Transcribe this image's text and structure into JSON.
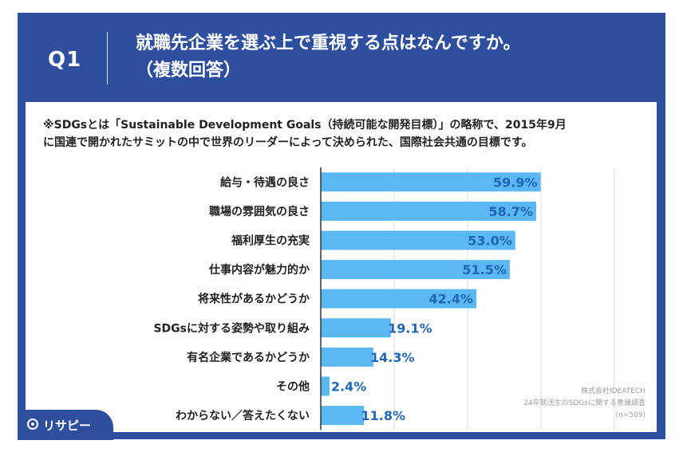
{
  "header": {
    "question_no": "Q1",
    "title_line1": "就職先企業を選ぶ上で重視する点はなんですか。",
    "title_line2": "（複数回答）"
  },
  "note": {
    "line1": "※SDGsとは「Sustainable Development Goals（持続可能な開発目標）」の略称で、2015年9月",
    "line2": "に国連で開かれたサミットの中で世界のリーダーによって決められた、国際社会共通の目標です。"
  },
  "source": {
    "company": "株式会社IDEATECH",
    "survey": "24卒就活生のSDGsに関する意識調査",
    "n": "(n=509)"
  },
  "logo": {
    "text": "リサピー"
  },
  "colors": {
    "frame": "#2d4f9e",
    "bar": "#5bb8f2",
    "label": "#1f66b8"
  },
  "chart_data": {
    "type": "bar",
    "orientation": "horizontal",
    "categories": [
      "給与・待遇の良さ",
      "職場の雰囲気の良さ",
      "福利厚生の充実",
      "仕事内容が魅力的か",
      "将来性があるかどうか",
      "SDGsに対する姿勢や取り組み",
      "有名企業であるかどうか",
      "その他",
      "わからない／答えたくない"
    ],
    "values": [
      59.9,
      58.7,
      53.0,
      51.5,
      42.4,
      19.1,
      14.3,
      2.4,
      11.8
    ],
    "value_labels": [
      "59.9%",
      "58.7%",
      "53.0%",
      "51.5%",
      "42.4%",
      "19.1%",
      "14.3%",
      "2.4%",
      "11.8%"
    ],
    "xlim": [
      0,
      100
    ],
    "grid": true
  }
}
